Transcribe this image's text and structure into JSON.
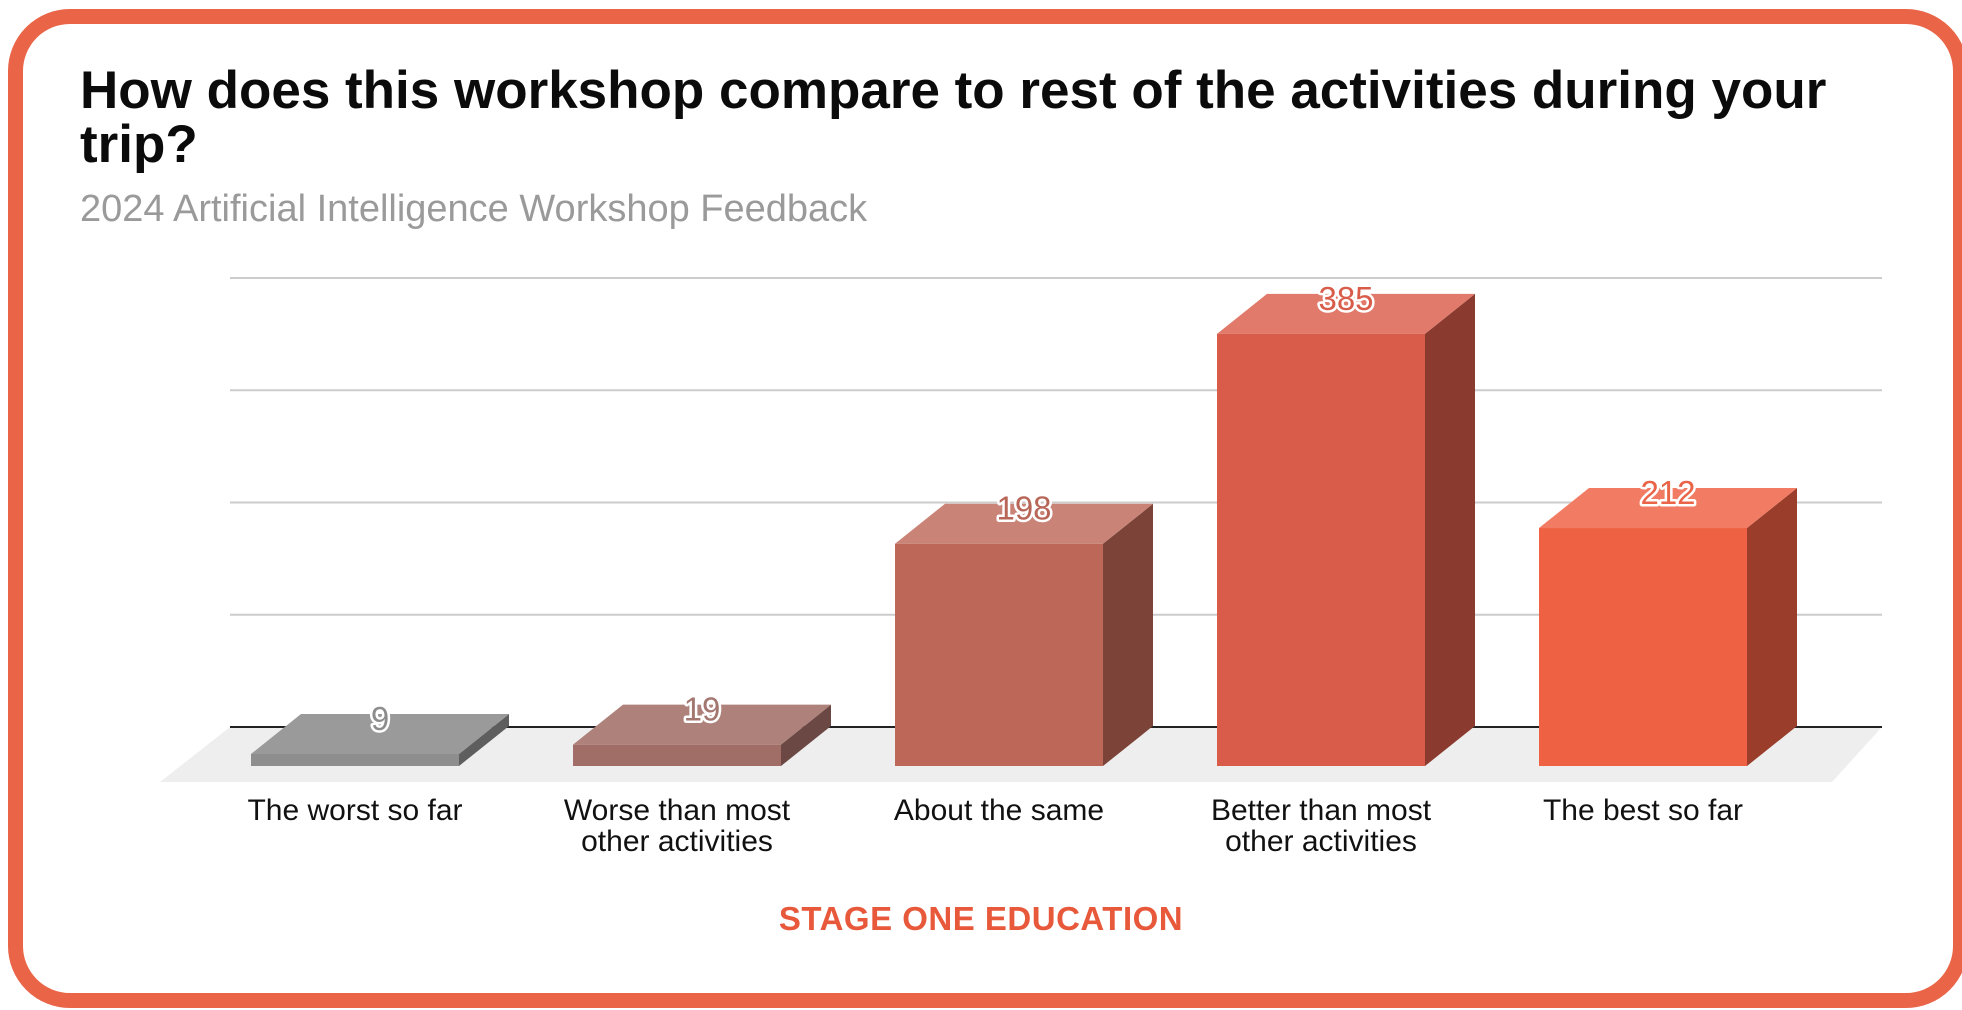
{
  "title": "How does this workshop compare to rest of the activities during your trip?",
  "subtitle": "2024 Artificial Intelligence Workshop Feedback",
  "footer": "STAGE ONE EDUCATION",
  "colors": {
    "frame": "#ea6447",
    "footer": "#e8593c",
    "grid": "#cccccc",
    "axis": "#222222",
    "floor": "#eeeeee"
  },
  "chart_data": {
    "type": "bar",
    "categories": [
      "The worst so far",
      "Worse than most other activities",
      "About the same",
      "Better than most other activities",
      "The best so far"
    ],
    "category_lines": [
      [
        "The worst so far"
      ],
      [
        "Worse than most",
        "other activities"
      ],
      [
        "About the same"
      ],
      [
        "Better than most",
        "other activities"
      ],
      [
        "The best so far"
      ]
    ],
    "values": [
      9,
      19,
      198,
      385,
      212
    ],
    "ylim": [
      0,
      400
    ],
    "grid": true,
    "three_d": true,
    "bar_colors": [
      {
        "front": "#8e8e8e",
        "side": "#5e5e5e",
        "top": "#9a9a9a",
        "label": "#8c8c8c"
      },
      {
        "front": "#a06e66",
        "side": "#6b4843",
        "top": "#ae827b",
        "label": "#a3766f"
      },
      {
        "front": "#bc6758",
        "side": "#7c4338",
        "top": "#c98477",
        "label": "#b86658"
      },
      {
        "front": "#d85c49",
        "side": "#8a3a2e",
        "top": "#e17a6b",
        "label": "#d85c49"
      },
      {
        "front": "#ef6143",
        "side": "#9a3d2a",
        "top": "#f27c63",
        "label": "#ea6447"
      }
    ]
  }
}
